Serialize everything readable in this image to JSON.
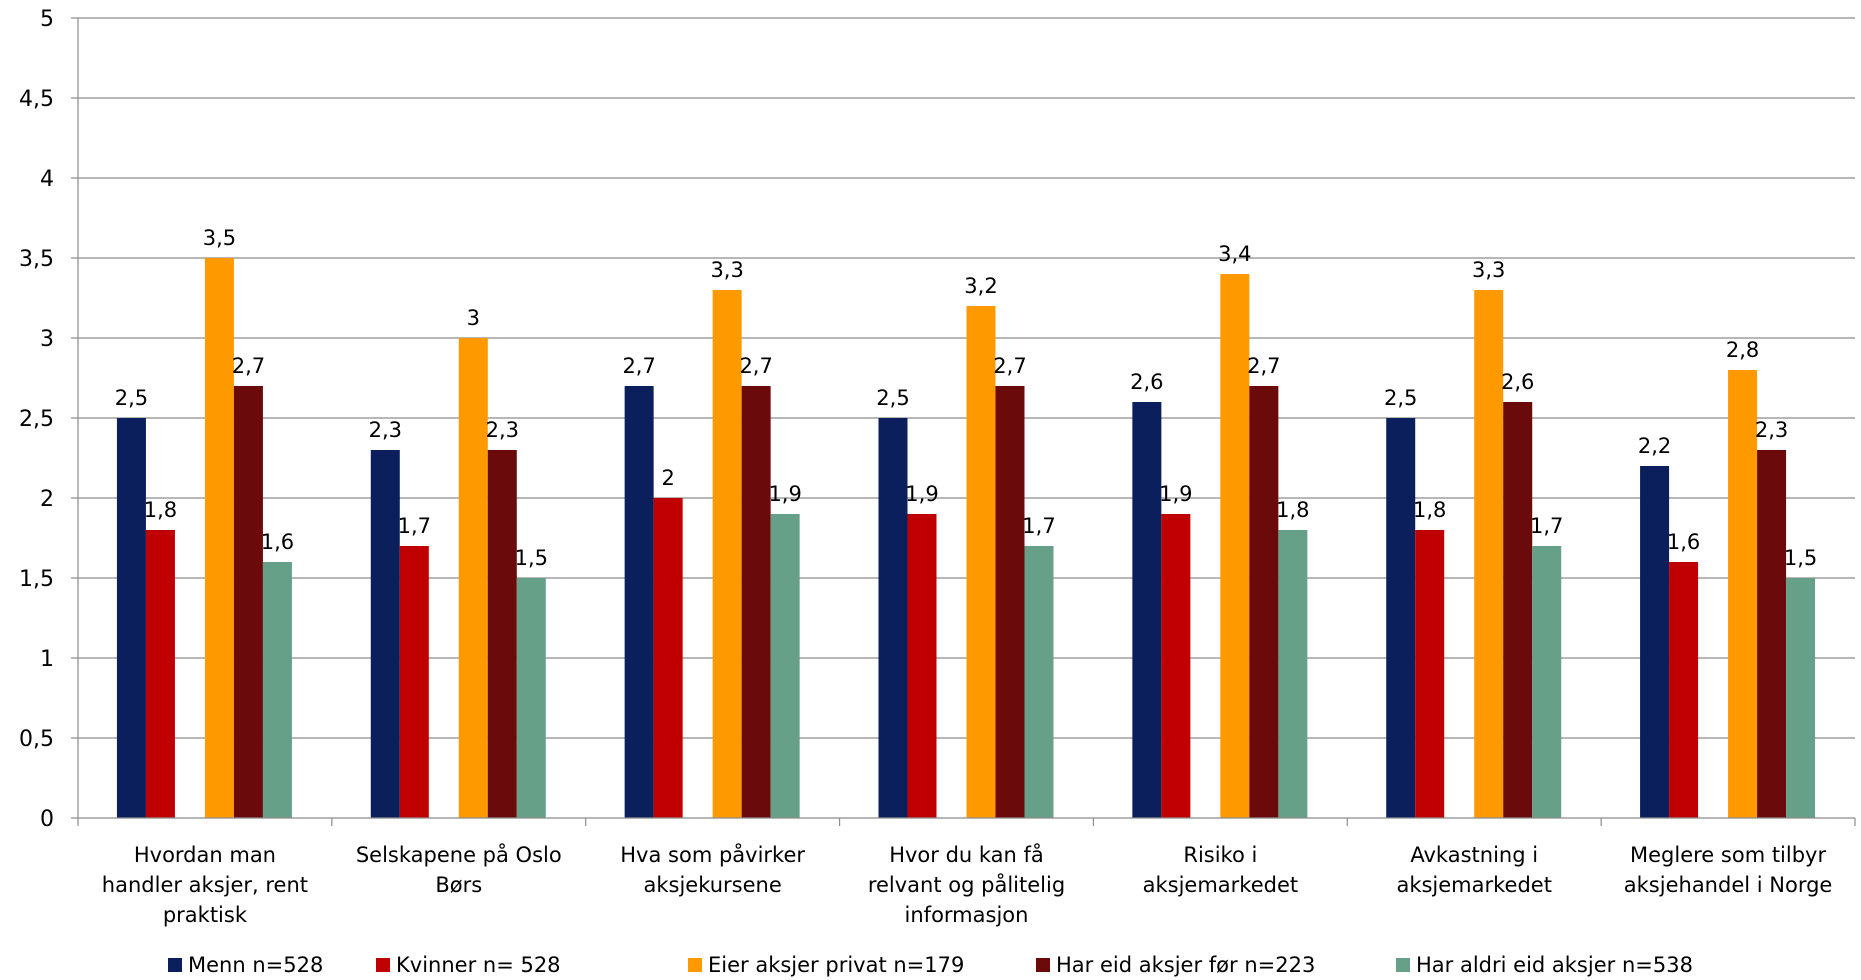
{
  "chart_data": {
    "type": "bar",
    "title": "",
    "xlabel": "",
    "ylabel": "",
    "ylim": [
      0,
      5
    ],
    "ytick_labels": [
      "0",
      "0,5",
      "1",
      "1,5",
      "2",
      "2,5",
      "3",
      "3,5",
      "4",
      "4,5",
      "5"
    ],
    "grid": true,
    "legend_position": "bottom",
    "categories": [
      [
        "Hvordan man",
        "handler aksjer, rent",
        "praktisk"
      ],
      [
        "Selskapene på Oslo",
        "Børs"
      ],
      [
        "Hva som påvirker",
        "aksjekursene"
      ],
      [
        "Hvor du kan få",
        "relvant og pålitelig",
        "informasjon"
      ],
      [
        "Risiko i",
        "aksjemarkedet"
      ],
      [
        "Avkastning i",
        "aksjemarkedet"
      ],
      [
        "Meglere som tilbyr",
        "aksjehandel i Norge"
      ]
    ],
    "series": [
      {
        "name": "Menn n=528",
        "color": "#0a1f5c",
        "values": [
          2.5,
          2.3,
          2.7,
          2.5,
          2.6,
          2.5,
          2.2
        ],
        "labels": [
          "2,5",
          "2,3",
          "2,7",
          "2,5",
          "2,6",
          "2,5",
          "2,2"
        ]
      },
      {
        "name": "Kvinner n= 528",
        "color": "#c00000",
        "values": [
          1.8,
          1.7,
          2.0,
          1.9,
          1.9,
          1.8,
          1.6
        ],
        "labels": [
          "1,8",
          "1,7",
          "2",
          "1,9",
          "1,9",
          "1,8",
          "1,6"
        ]
      },
      {
        "name": "Eier aksjer privat n=179",
        "color": "#ff9900",
        "values": [
          3.5,
          3.0,
          3.3,
          3.2,
          3.4,
          3.3,
          2.8
        ],
        "labels": [
          "3,5",
          "3",
          "3,3",
          "3,2",
          "3,4",
          "3,3",
          "2,8"
        ]
      },
      {
        "name": "Har eid aksjer før n=223",
        "color": "#6b0a0a",
        "values": [
          2.7,
          2.3,
          2.7,
          2.7,
          2.7,
          2.6,
          2.3
        ],
        "labels": [
          "2,7",
          "2,3",
          "2,7",
          "2,7",
          "2,7",
          "2,6",
          "2,3"
        ]
      },
      {
        "name": "Har aldri eid aksjer n=538",
        "color": "#66a088",
        "values": [
          1.6,
          1.5,
          1.9,
          1.7,
          1.8,
          1.7,
          1.5
        ],
        "labels": [
          "1,6",
          "1,5",
          "1,9",
          "1,7",
          "1,8",
          "1,7",
          "1,5"
        ]
      }
    ]
  }
}
